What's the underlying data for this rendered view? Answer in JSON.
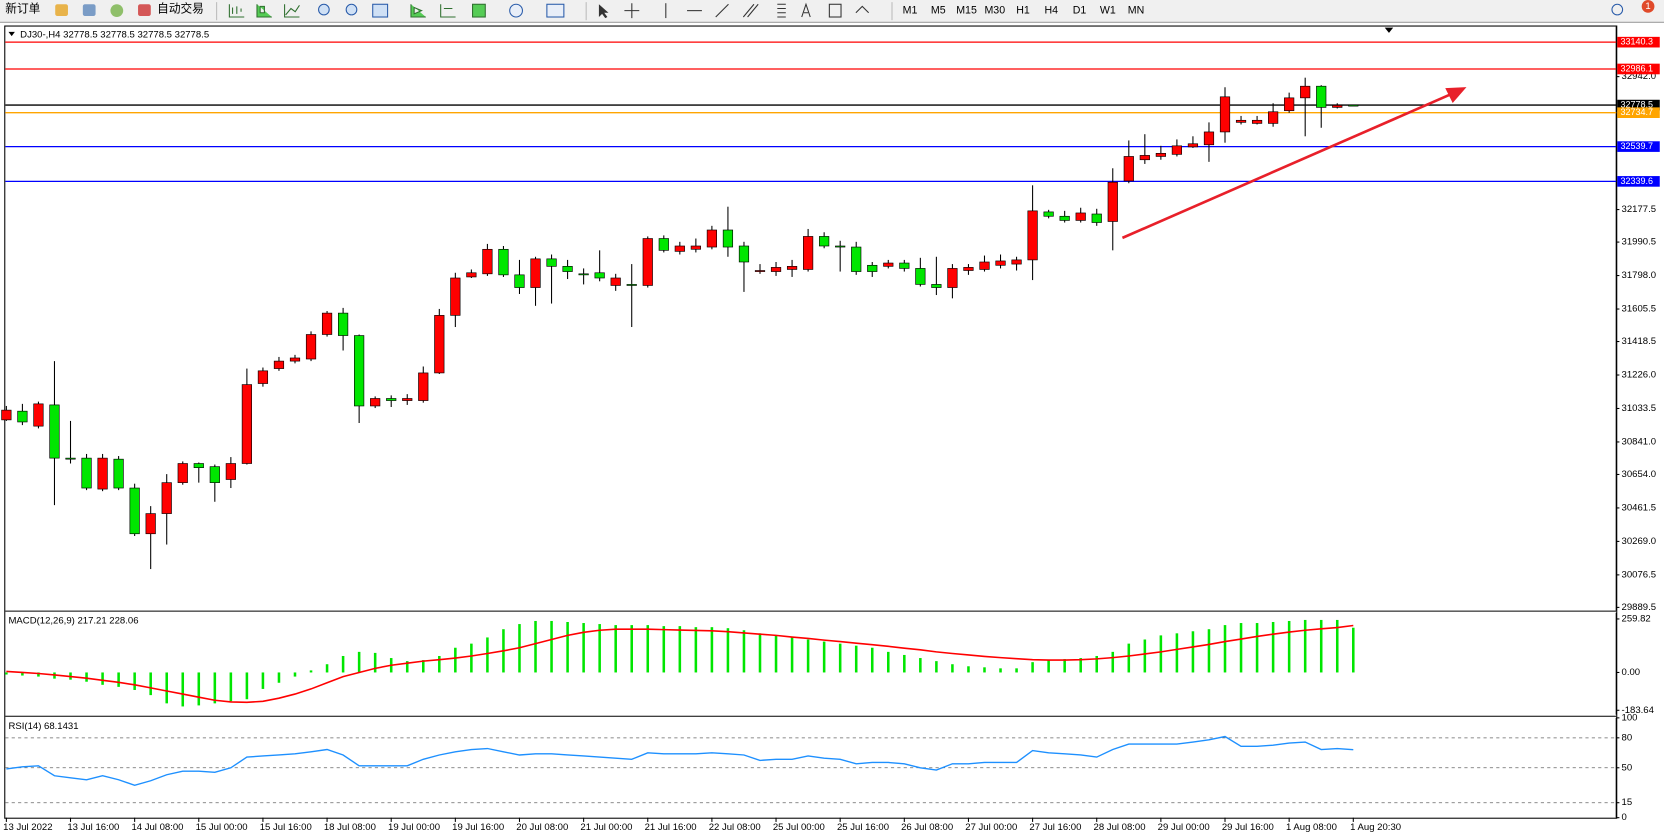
{
  "toolbar": {
    "new_order": "新订单",
    "auto_trading": "自动交易",
    "timeframes": [
      "M1",
      "M5",
      "M15",
      "M30",
      "H1",
      "H4",
      "D1",
      "W1",
      "MN"
    ],
    "notifications": 1
  },
  "chart_data": [
    {
      "type": "candlestick",
      "title": "DJ30-,H4  32778.5 32778.5 32778.5 32778.5",
      "categories": [
        "13 Jul 2022",
        null,
        null,
        null,
        "13 Jul 16:00",
        null,
        null,
        null,
        "14 Jul 08:00",
        null,
        null,
        null,
        "15 Jul 00:00",
        null,
        null,
        null,
        "15 Jul 16:00",
        null,
        null,
        null,
        "18 Jul 08:00",
        null,
        null,
        null,
        "19 Jul 00:00",
        null,
        null,
        null,
        "19 Jul 16:00",
        null,
        null,
        null,
        "20 Jul 08:00",
        null,
        null,
        null,
        "21 Jul 00:00",
        null,
        null,
        null,
        "21 Jul 16:00",
        null,
        null,
        null,
        "22 Jul 08:00",
        null,
        null,
        null,
        "25 Jul 00:00",
        null,
        null,
        null,
        "25 Jul 16:00",
        null,
        null,
        null,
        "26 Jul 08:00",
        null,
        null,
        null,
        "27 Jul 00:00",
        null,
        null,
        null,
        "27 Jul 16:00",
        null,
        null,
        null,
        "28 Jul 08:00",
        null,
        null,
        null,
        "29 Jul 00:00",
        null,
        null,
        null,
        "29 Jul 16:00",
        null,
        null,
        null,
        "1 Aug 08:00",
        null,
        null,
        null,
        "1 Aug 20:30"
      ],
      "open": [
        30968,
        31018,
        30932,
        31054,
        30748,
        30748,
        30570,
        30742,
        30576,
        30313,
        30429,
        30607,
        30717,
        30699,
        30625,
        30717,
        31177,
        31263,
        31306,
        31318,
        31459,
        31582,
        31453,
        31048,
        31091,
        31079,
        31079,
        31238,
        31569,
        31790,
        31808,
        31949,
        31802,
        31729,
        31894,
        31851,
        31808,
        31814,
        31741,
        31747,
        31741,
        32011,
        31937,
        31949,
        31962,
        32060,
        31968,
        31821,
        31821,
        31833,
        31833,
        32023,
        31968,
        31962,
        31857,
        31851,
        31870,
        31839,
        31747,
        31729,
        31827,
        31833,
        31857,
        31864,
        31888,
        32164,
        32139,
        32115,
        32152,
        32109,
        32342,
        32464,
        32483,
        32495,
        32538,
        32550,
        32624,
        32679,
        32673,
        32673,
        32746,
        32820,
        32887,
        32765,
        32778.5
      ],
      "high": [
        31048,
        31060,
        31073,
        31306,
        30962,
        30772,
        30772,
        30760,
        30601,
        30472,
        30656,
        30729,
        30723,
        30711,
        30754,
        31263,
        31269,
        31330,
        31342,
        31477,
        31594,
        31612,
        31459,
        31103,
        31109,
        31116,
        31275,
        31606,
        31814,
        31833,
        31980,
        31968,
        31888,
        31906,
        31919,
        31888,
        31839,
        31943,
        31808,
        31864,
        32023,
        32029,
        31992,
        32011,
        32084,
        32194,
        31992,
        31864,
        31876,
        31888,
        32066,
        32047,
        31998,
        31992,
        31876,
        31888,
        31888,
        31900,
        31906,
        31864,
        31864,
        31913,
        31919,
        31906,
        32317,
        32176,
        32170,
        32188,
        32182,
        32415,
        32575,
        32611,
        32544,
        32581,
        32599,
        32679,
        32881,
        32716,
        32716,
        32789,
        32850,
        32936,
        32893,
        32789,
        32778.5
      ],
      "low": [
        30962,
        30938,
        30919,
        30478,
        30717,
        30564,
        30558,
        30564,
        30300,
        30110,
        30251,
        30595,
        30607,
        30497,
        30576,
        30711,
        31159,
        31250,
        31293,
        31306,
        31447,
        31367,
        30950,
        31036,
        31042,
        31054,
        31067,
        31232,
        31502,
        31784,
        31796,
        31790,
        31692,
        31624,
        31637,
        31778,
        31747,
        31765,
        31710,
        31502,
        31729,
        31931,
        31919,
        31931,
        31949,
        31906,
        31704,
        31808,
        31796,
        31790,
        31821,
        31955,
        31821,
        31802,
        31790,
        31839,
        31821,
        31735,
        31686,
        31667,
        31802,
        31821,
        31839,
        31827,
        31772,
        32127,
        32103,
        32103,
        32084,
        31943,
        32329,
        32440,
        32464,
        32483,
        32532,
        32452,
        32562,
        32667,
        32667,
        32654,
        32734,
        32599,
        32648,
        32759,
        32778.5
      ],
      "close": [
        31024,
        30956,
        31060,
        30748,
        30742,
        30576,
        30748,
        30576,
        30313,
        30429,
        30607,
        30717,
        30693,
        30607,
        30717,
        31171,
        31250,
        31306,
        31324,
        31459,
        31582,
        31453,
        31048,
        31091,
        31079,
        31091,
        31238,
        31569,
        31784,
        31814,
        31949,
        31802,
        31729,
        31894,
        31851,
        31821,
        31802,
        31784,
        31784,
        31741,
        32011,
        31943,
        31968,
        31968,
        32060,
        31962,
        31876,
        31827,
        31845,
        31851,
        32023,
        31968,
        31962,
        31821,
        31821,
        31870,
        31839,
        31747,
        31729,
        31839,
        31845,
        31876,
        31882,
        31888,
        32170,
        32139,
        32115,
        32158,
        32103,
        32335,
        32483,
        32489,
        32501,
        32544,
        32556,
        32624,
        32826,
        32691,
        32691,
        32740,
        32820,
        32887,
        32765,
        32777,
        32778.5
      ],
      "up_color": "#ff0000",
      "down_color": "#00e600",
      "ylim": [
        29871,
        33230
      ],
      "yticks": [
        {
          "value": 32942,
          "label": "32942.0"
        },
        32177.5,
        31990.5,
        {
          "value": 31798,
          "label": "31798.0"
        },
        31605.5,
        31418.5,
        {
          "value": 31226,
          "label": "31226.0"
        },
        31033.5,
        {
          "value": 30841,
          "label": "30841.0"
        },
        {
          "value": 30654,
          "label": "30654.0"
        },
        30461.5,
        {
          "value": 30269,
          "label": "30269.0"
        },
        30076.5,
        29889.5
      ],
      "price_lines": [
        {
          "value": 33140.3,
          "color": "#ff0000"
        },
        {
          "value": 32986.1,
          "color": "#ff0000"
        },
        {
          "value": 32778.5,
          "color": "#000000"
        },
        {
          "value": 32734.7,
          "color": "#ffa500"
        },
        {
          "value": 32539.7,
          "color": "#0000ff"
        },
        {
          "value": 32339.6,
          "color": "#0000ff"
        }
      ]
    },
    {
      "type": "macd",
      "title": "MACD(12,26,9) 217.21 228.06",
      "values": [
        -10,
        -15,
        -20,
        -30,
        -35,
        -45,
        -60,
        -70,
        -85,
        -110,
        -150,
        -165,
        -160,
        -150,
        -140,
        -130,
        -80,
        -50,
        -20,
        10,
        40,
        80,
        100,
        95,
        70,
        55,
        60,
        80,
        120,
        140,
        170,
        210,
        235,
        250,
        250,
        245,
        240,
        235,
        230,
        230,
        230,
        225,
        225,
        220,
        220,
        215,
        205,
        190,
        180,
        170,
        160,
        150,
        140,
        130,
        120,
        100,
        85,
        70,
        55,
        40,
        30,
        25,
        20,
        20,
        50,
        60,
        65,
        70,
        80,
        100,
        140,
        160,
        180,
        190,
        200,
        210,
        230,
        240,
        240,
        245,
        250,
        255,
        255,
        255,
        217.21
      ],
      "signal": [
        5,
        0,
        -5,
        -12,
        -20,
        -28,
        -38,
        -48,
        -60,
        -75,
        -90,
        -105,
        -120,
        -135,
        -143,
        -145,
        -140,
        -125,
        -105,
        -80,
        -50,
        -20,
        0,
        20,
        35,
        45,
        55,
        62,
        70,
        80,
        92,
        105,
        120,
        140,
        160,
        180,
        195,
        205,
        210,
        210,
        210,
        208,
        206,
        204,
        202,
        198,
        192,
        186,
        180,
        172,
        165,
        157,
        150,
        142,
        135,
        127,
        118,
        110,
        100,
        92,
        85,
        78,
        72,
        67,
        62,
        60,
        60,
        62,
        66,
        72,
        80,
        90,
        100,
        112,
        124,
        136,
        150,
        162,
        175,
        186,
        196,
        205,
        212,
        218,
        228.06
      ],
      "color": "#00e600",
      "signal_color": "#ff0000",
      "ylim": [
        -205,
        290
      ],
      "yticks": [
        259.82,
        {
          "value": 0,
          "label": "0.00"
        },
        -183.64
      ]
    },
    {
      "type": "line",
      "title": "RSI(14) 68.1431",
      "values": [
        48.8,
        51,
        52,
        42,
        40,
        38,
        42,
        38,
        32.5,
        37,
        43,
        46.6,
        46.6,
        45.5,
        50,
        60.7,
        61.8,
        62.8,
        64,
        66,
        68.3,
        62.8,
        52,
        52,
        52,
        52,
        58.5,
        62.8,
        66,
        68.3,
        69.3,
        66,
        62.8,
        64,
        64,
        62.8,
        61.8,
        60.7,
        59.6,
        58.5,
        65,
        64,
        64,
        64,
        65,
        64,
        62.8,
        57.4,
        58.5,
        58.5,
        61.8,
        59.6,
        58.5,
        54,
        55.3,
        55.3,
        54,
        50,
        47.7,
        54,
        54,
        55.3,
        55.3,
        55.3,
        67.2,
        65,
        64,
        62.8,
        60.7,
        68.3,
        73.7,
        73.7,
        73.7,
        73.7,
        75.8,
        78,
        81.3,
        71.5,
        71.5,
        72.6,
        74.8,
        75.8,
        68.3,
        69.3,
        68.1431
      ],
      "color": "#1e90ff",
      "ylim": [
        0,
        100
      ],
      "yticks": [
        100,
        80,
        50,
        15,
        0
      ]
    }
  ]
}
